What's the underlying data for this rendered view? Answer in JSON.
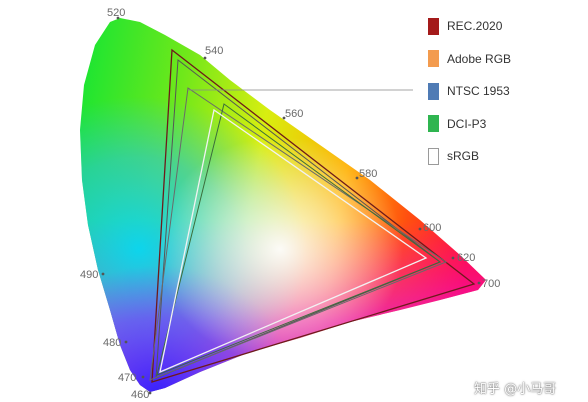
{
  "legend": [
    {
      "name": "REC.2020",
      "color": "#a41a1a",
      "outline": false
    },
    {
      "name": "Adobe RGB",
      "color": "#f39b4e",
      "outline": false
    },
    {
      "name": "NTSC 1953",
      "color": "#4f7bb5",
      "outline": false
    },
    {
      "name": "DCI-P3",
      "color": "#2fb550",
      "outline": false
    },
    {
      "name": "sRGB",
      "color": "#ffffff",
      "outline": true
    }
  ],
  "wavelength_labels": [
    "460",
    "470",
    "480",
    "490",
    "520",
    "540",
    "560",
    "580",
    "600",
    "620",
    "700"
  ],
  "watermark": "知乎 @小马哥"
}
